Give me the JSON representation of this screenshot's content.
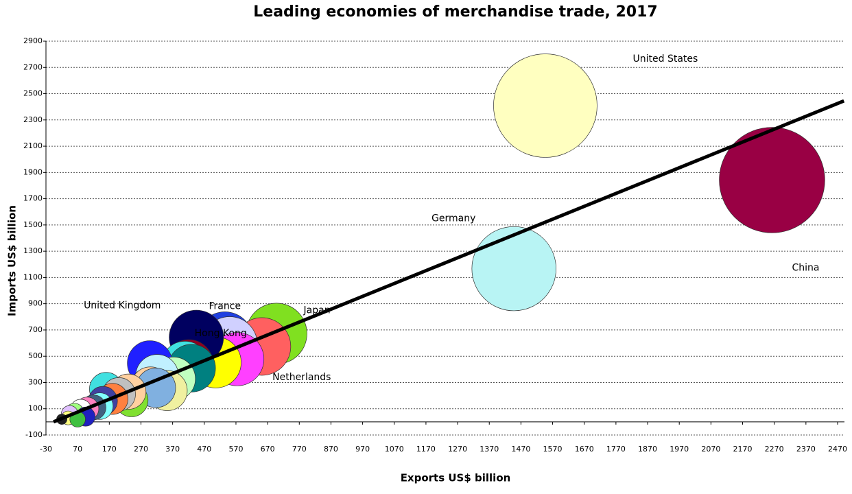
{
  "chart_data": {
    "type": "bubble",
    "title": "Leading economies of merchandise trade, 2017",
    "x_label": "Exports US$ billion",
    "y_label": "Imports  US$ billion",
    "xlim": [
      -30,
      2470
    ],
    "ylim": [
      -100,
      2900
    ],
    "xticks": [
      -30,
      70,
      170,
      270,
      370,
      470,
      570,
      670,
      770,
      870,
      970,
      1070,
      1170,
      1270,
      1370,
      1470,
      1570,
      1670,
      1770,
      1870,
      1970,
      2070,
      2170,
      2270,
      2370,
      2470
    ],
    "yticks": [
      -100,
      100,
      300,
      500,
      700,
      900,
      1100,
      1300,
      1500,
      1700,
      1900,
      2100,
      2300,
      2500,
      2700,
      2900
    ],
    "grid": true,
    "labels": [
      "China",
      "United States",
      "Germany",
      "Japan",
      "Netherlands",
      "France",
      "Hong Kong",
      null,
      null,
      "United Kingdom",
      null,
      null,
      null,
      null,
      null,
      null,
      null,
      null,
      null,
      null,
      null,
      null,
      null,
      null,
      null,
      null,
      null,
      null,
      null,
      null,
      null,
      null,
      null,
      null,
      null
    ],
    "x": [
      2263,
      1547,
      1448,
      698,
      652,
      535,
      550,
      574,
      506,
      445,
      421,
      409,
      430,
      298,
      373,
      321,
      353,
      300,
      317,
      160,
      240,
      230,
      200,
      180,
      150,
      140,
      120,
      100,
      80,
      60,
      45,
      95,
      40,
      70,
      20
    ],
    "y": [
      1842,
      2409,
      1167,
      672,
      574,
      625,
      590,
      478,
      453,
      644,
      442,
      432,
      409,
      447,
      328,
      351,
      238,
      269,
      259,
      250,
      165,
      230,
      210,
      175,
      160,
      120,
      110,
      100,
      90,
      70,
      60,
      40,
      30,
      20,
      20
    ],
    "sizes": [
      4105,
      3956,
      2615,
      1370,
      1226,
      1160,
      1140,
      1052,
      959,
      1089,
      863,
      841,
      839,
      745,
      701,
      672,
      591,
      569,
      576,
      410,
      405,
      460,
      410,
      355,
      310,
      260,
      230,
      200,
      170,
      130,
      105,
      135,
      70,
      90,
      40
    ],
    "colors": [
      "#990044",
      "#ffffc0",
      "#b8f4f4",
      "#80e020",
      "#ff6060",
      "#2040e0",
      "#d0d0ff",
      "#ff40ff",
      "#ffff00",
      "#000060",
      "#900020",
      "#40e0e0",
      "#008080",
      "#2020ff",
      "#c0ffc0",
      "#c0f0ff",
      "#f0f0a0",
      "#ffd0a0",
      "#80b0e0",
      "#40e0e0",
      "#80e030",
      "#ffd0a0",
      "#c0c0c0",
      "#ff8040",
      "#4040a0",
      "#80ffff",
      "#406080",
      "#ff80c0",
      "#ffffff",
      "#a0ff80",
      "#e0c0ff",
      "#2020c0",
      "#ffff80",
      "#40c040",
      "#202020"
    ],
    "trendline": {
      "x": [
        -6,
        2490
      ],
      "y": [
        0,
        2445
      ]
    }
  }
}
